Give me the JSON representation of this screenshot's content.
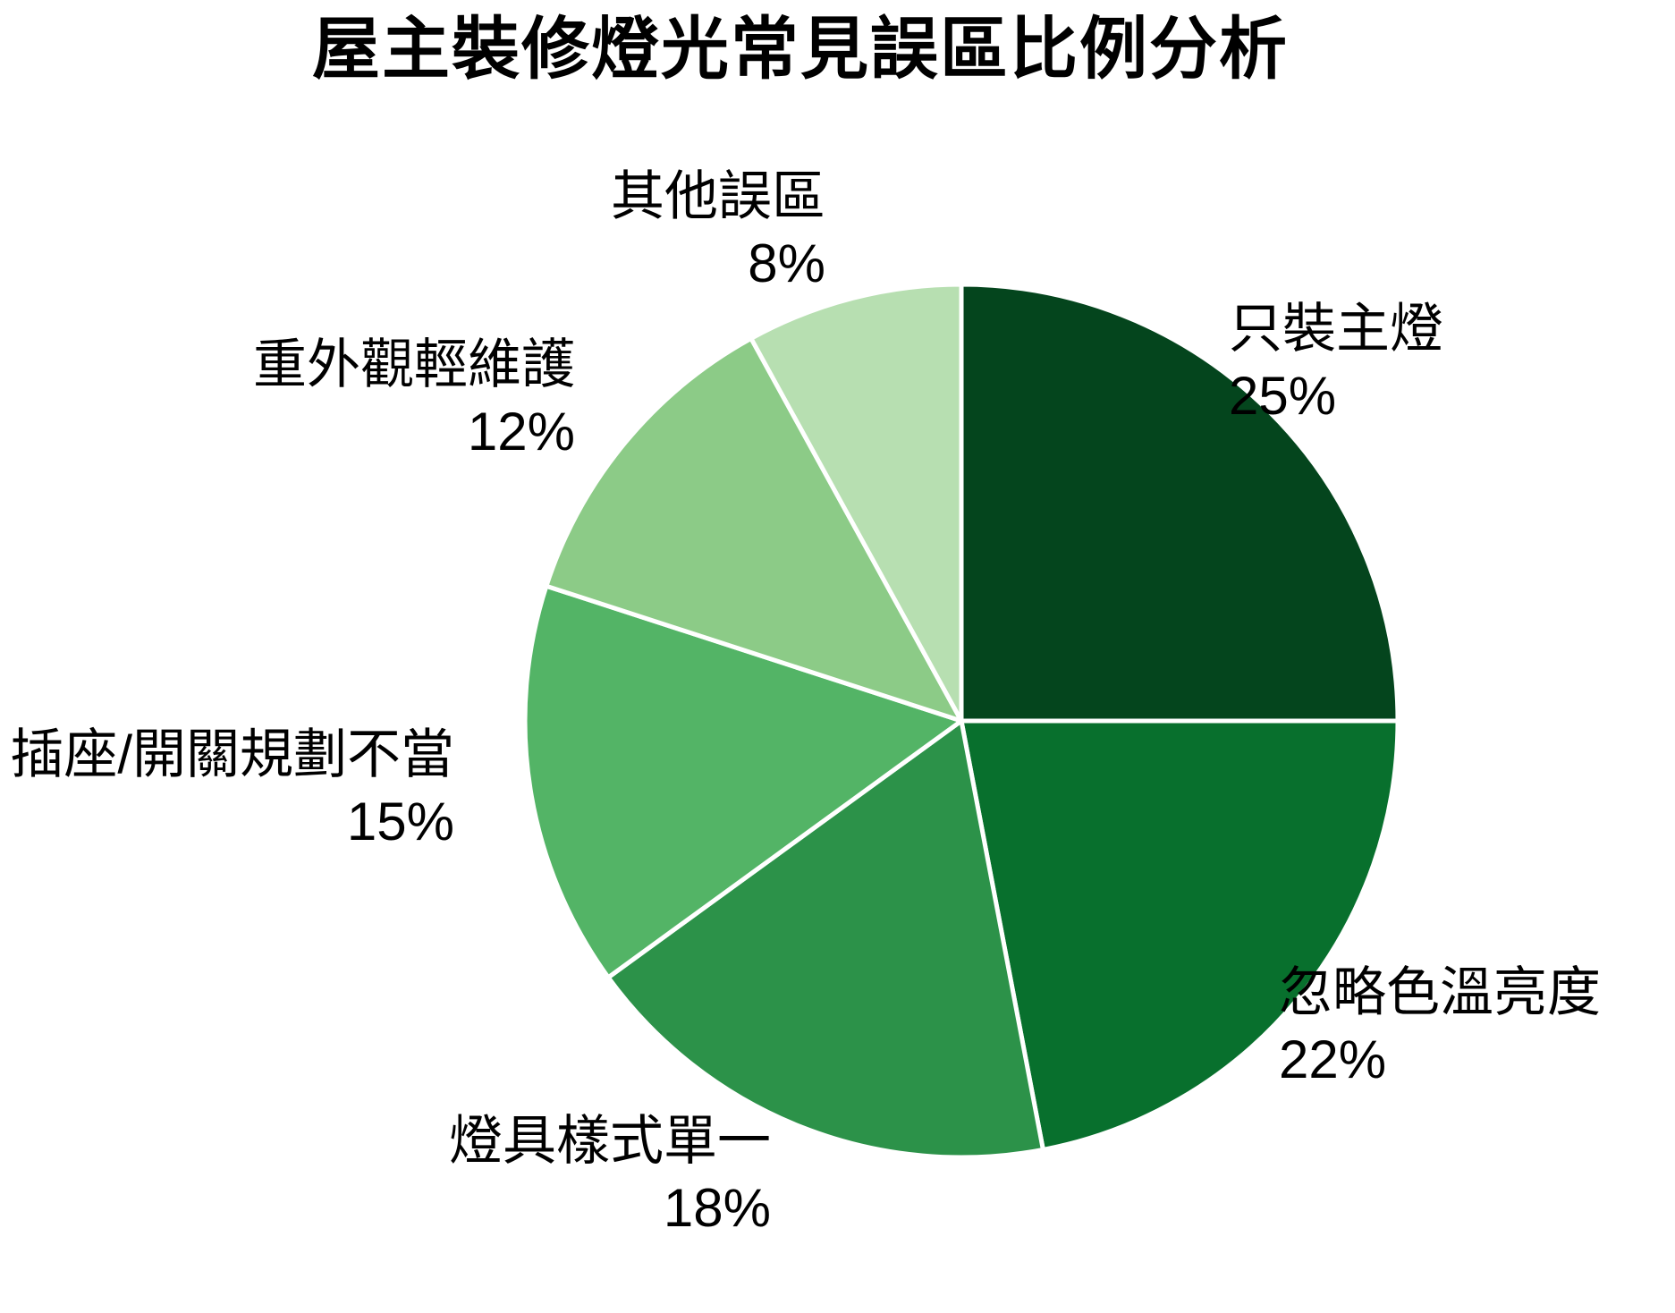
{
  "chart_data": {
    "type": "pie",
    "title": "屋主裝修燈光常見誤區比例分析",
    "start_angle_deg": 90,
    "direction": "clockwise",
    "legend": "none",
    "label_position": "outside",
    "wedge_border_color": "#ffffff",
    "slices": [
      {
        "label": "只裝主燈",
        "value": 25,
        "pct": "25%",
        "color": "#04451d"
      },
      {
        "label": "忽略色溫亮度",
        "value": 22,
        "pct": "22%",
        "color": "#08702d"
      },
      {
        "label": "燈具樣式單一",
        "value": 18,
        "pct": "18%",
        "color": "#2c9249"
      },
      {
        "label": "插座/開關規劃不當",
        "value": 15,
        "pct": "15%",
        "color": "#53b466"
      },
      {
        "label": "重外觀輕維護",
        "value": 12,
        "pct": "12%",
        "color": "#8ccb87"
      },
      {
        "label": "其他誤區",
        "value": 8,
        "pct": "8%",
        "color": "#b7dfb1"
      }
    ]
  }
}
